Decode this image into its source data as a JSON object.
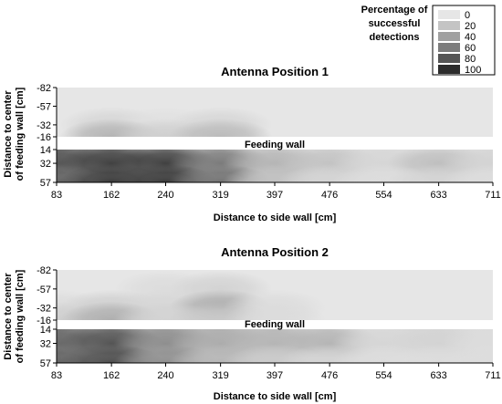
{
  "legend": {
    "title_lines": [
      "Percentage of",
      "successful",
      "detections"
    ],
    "entries": [
      {
        "label": "0",
        "color": "#e6e6e6"
      },
      {
        "label": "20",
        "color": "#c4c4c4"
      },
      {
        "label": "40",
        "color": "#a0a0a0"
      },
      {
        "label": "60",
        "color": "#7c7c7c"
      },
      {
        "label": "80",
        "color": "#555555"
      },
      {
        "label": "100",
        "color": "#2c2c2c"
      }
    ]
  },
  "colors": {
    "background_band": "#e6e6e6",
    "divider": "#ffffff"
  },
  "chart_data": [
    {
      "type": "heatmap",
      "title": "Antenna Position 1",
      "xlabel": "Distance to side wall [cm]",
      "ylabel_lines": [
        "Distance to center",
        "of feeding wall [cm]"
      ],
      "xticks": [
        "83",
        "162",
        "240",
        "319",
        "397",
        "476",
        "554",
        "633",
        "711"
      ],
      "yticks_upper": [
        "-82",
        "-57",
        "-32",
        "-16"
      ],
      "yticks_lower": [
        "14",
        "32",
        "57"
      ],
      "divider_label": "Feeding wall",
      "x": [
        83,
        162,
        240,
        319,
        397,
        476,
        554,
        633,
        711
      ],
      "y_upper": [
        -82,
        -57,
        -32,
        -16
      ],
      "y_lower": [
        14,
        32,
        57
      ],
      "z_upper": [
        [
          0,
          0,
          0,
          0,
          0,
          0,
          0,
          0,
          0
        ],
        [
          0,
          0,
          0,
          0,
          0,
          0,
          0,
          0,
          0
        ],
        [
          0,
          8,
          3,
          8,
          0,
          0,
          0,
          0,
          0
        ],
        [
          0,
          25,
          12,
          22,
          0,
          0,
          0,
          0,
          0
        ]
      ],
      "z_lower": [
        [
          60,
          55,
          45,
          30,
          12,
          8,
          5,
          5,
          5
        ],
        [
          75,
          85,
          85,
          55,
          25,
          18,
          8,
          20,
          10
        ],
        [
          70,
          90,
          90,
          60,
          20,
          10,
          5,
          10,
          5
        ]
      ]
    },
    {
      "type": "heatmap",
      "title": "Antenna Position 2",
      "xlabel": "Distance to side wall [cm]",
      "ylabel_lines": [
        "Distance to center",
        "of feeding wall [cm]"
      ],
      "xticks": [
        "83",
        "162",
        "240",
        "319",
        "397",
        "476",
        "554",
        "633",
        "711"
      ],
      "yticks_upper": [
        "-82",
        "-57",
        "-32",
        "-16"
      ],
      "yticks_lower": [
        "14",
        "32",
        "57"
      ],
      "divider_label": "Feeding wall",
      "x": [
        83,
        162,
        240,
        319,
        397,
        476,
        554,
        633,
        711
      ],
      "y_upper": [
        -82,
        -57,
        -32,
        -16
      ],
      "y_lower": [
        14,
        32,
        57
      ],
      "z_upper": [
        [
          0,
          0,
          0,
          0,
          0,
          0,
          0,
          0,
          0
        ],
        [
          0,
          0,
          5,
          10,
          0,
          0,
          0,
          0,
          0
        ],
        [
          5,
          12,
          8,
          30,
          5,
          0,
          0,
          0,
          0
        ],
        [
          12,
          28,
          10,
          15,
          5,
          0,
          0,
          0,
          0
        ]
      ],
      "z_lower": [
        [
          55,
          50,
          35,
          25,
          20,
          15,
          5,
          8,
          5
        ],
        [
          65,
          75,
          45,
          30,
          25,
          25,
          8,
          10,
          5
        ],
        [
          70,
          80,
          45,
          25,
          15,
          10,
          5,
          5,
          5
        ]
      ]
    }
  ]
}
